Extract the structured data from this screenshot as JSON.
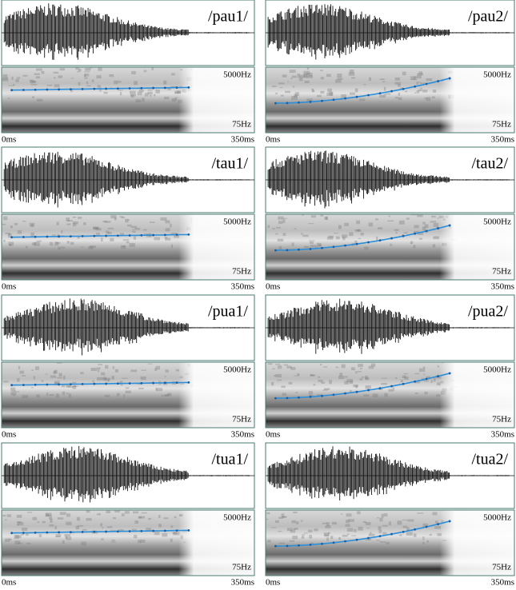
{
  "panels": [
    {
      "label": "/pau1/",
      "freq_high": "5000Hz",
      "freq_low": "75Hz",
      "time_start": "0ms",
      "time_end": "350ms"
    },
    {
      "label": "/pau2/",
      "freq_high": "5000Hz",
      "freq_low": "75Hz",
      "time_start": "0ms",
      "time_end": "350ms"
    },
    {
      "label": "/tau1/",
      "freq_high": "5000Hz",
      "freq_low": "75Hz",
      "time_start": "0ms",
      "time_end": "350ms"
    },
    {
      "label": "/tau2/",
      "freq_high": "5000Hz",
      "freq_low": "75Hz",
      "time_start": "0ms",
      "time_end": "350ms"
    },
    {
      "label": "/pua1/",
      "freq_high": "5000Hz",
      "freq_low": "75Hz",
      "time_start": "0ms",
      "time_end": "350ms"
    },
    {
      "label": "/pua2/",
      "freq_high": "5000Hz",
      "freq_low": "75Hz",
      "time_start": "0ms",
      "time_end": "350ms"
    },
    {
      "label": "/tua1/",
      "freq_high": "5000Hz",
      "freq_low": "75Hz",
      "time_start": "0ms",
      "time_end": "350ms"
    },
    {
      "label": "/tua2/",
      "freq_high": "5000Hz",
      "freq_low": "75Hz",
      "time_start": "0ms",
      "time_end": "350ms"
    }
  ]
}
